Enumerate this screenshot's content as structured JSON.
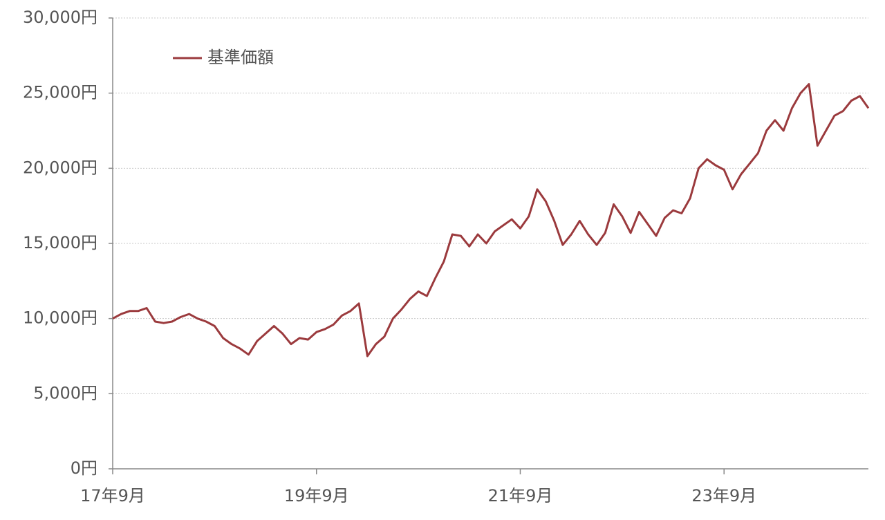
{
  "chart_data": {
    "type": "line",
    "x": [
      "2017-09",
      "2017-10",
      "2017-11",
      "2017-12",
      "2018-01",
      "2018-02",
      "2018-03",
      "2018-04",
      "2018-05",
      "2018-06",
      "2018-07",
      "2018-08",
      "2018-09",
      "2018-10",
      "2018-11",
      "2018-12",
      "2019-01",
      "2019-02",
      "2019-03",
      "2019-04",
      "2019-05",
      "2019-06",
      "2019-07",
      "2019-08",
      "2019-09",
      "2019-10",
      "2019-11",
      "2019-12",
      "2020-01",
      "2020-02",
      "2020-03",
      "2020-04",
      "2020-05",
      "2020-06",
      "2020-07",
      "2020-08",
      "2020-09",
      "2020-10",
      "2020-11",
      "2020-12",
      "2021-01",
      "2021-02",
      "2021-03",
      "2021-04",
      "2021-05",
      "2021-06",
      "2021-07",
      "2021-08",
      "2021-09",
      "2021-10",
      "2021-11",
      "2021-12",
      "2022-01",
      "2022-02",
      "2022-03",
      "2022-04",
      "2022-05",
      "2022-06",
      "2022-07",
      "2022-08",
      "2022-09",
      "2022-10",
      "2022-11",
      "2022-12",
      "2023-01",
      "2023-02",
      "2023-03",
      "2023-04",
      "2023-05",
      "2023-06",
      "2023-07",
      "2023-08",
      "2023-09",
      "2023-10",
      "2023-11",
      "2023-12",
      "2024-01",
      "2024-02",
      "2024-03",
      "2024-04",
      "2024-05",
      "2024-06",
      "2024-07",
      "2024-08",
      "2024-09",
      "2024-10",
      "2024-11",
      "2024-12",
      "2025-01",
      "2025-02"
    ],
    "series": [
      {
        "name": "基準価額",
        "color": "#9b3a3d",
        "values": [
          10000,
          10300,
          10500,
          10500,
          10700,
          9800,
          9700,
          9800,
          10100,
          10300,
          10000,
          9800,
          9500,
          8700,
          8300,
          8000,
          7600,
          8500,
          9000,
          9500,
          9000,
          8300,
          8700,
          8600,
          9100,
          9300,
          9600,
          10200,
          10500,
          11000,
          7500,
          8300,
          8800,
          10000,
          10600,
          11300,
          11800,
          11500,
          12700,
          13800,
          15600,
          15500,
          14800,
          15600,
          15000,
          15800,
          16200,
          16600,
          16000,
          16800,
          18600,
          17800,
          16500,
          14900,
          15600,
          16500,
          15600,
          14900,
          15700,
          17600,
          16800,
          15700,
          17100,
          16300,
          15500,
          16700,
          17200,
          17000,
          18000,
          20000,
          20600,
          20200,
          19900,
          18600,
          19600,
          20300,
          21000,
          22500,
          23200,
          22500,
          24000,
          25000,
          25600,
          21500,
          22500,
          23500,
          23800,
          24500,
          24800,
          24000
        ]
      }
    ],
    "xlim": [
      "2017-09",
      "2025-02"
    ],
    "xticks": [
      {
        "value": "2017-09",
        "label": "17年9月"
      },
      {
        "value": "2019-09",
        "label": "19年9月"
      },
      {
        "value": "2021-09",
        "label": "21年9月"
      },
      {
        "value": "2023-09",
        "label": "23年9月"
      }
    ],
    "ylim": [
      0,
      30000
    ],
    "yticks": [
      {
        "value": 0,
        "label": "0円"
      },
      {
        "value": 5000,
        "label": "5,000円"
      },
      {
        "value": 10000,
        "label": "10,000円"
      },
      {
        "value": 15000,
        "label": "15,000円"
      },
      {
        "value": 20000,
        "label": "20,000円"
      },
      {
        "value": 25000,
        "label": "25,000円"
      },
      {
        "value": 30000,
        "label": "30,000円"
      }
    ],
    "grid": true,
    "legend": "top-left"
  }
}
